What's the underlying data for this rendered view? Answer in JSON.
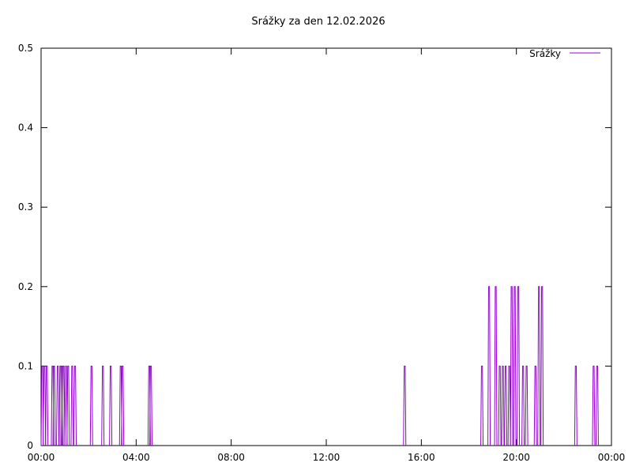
{
  "chart_data": {
    "type": "line",
    "title": "Srážky za den 12.02.2026",
    "xlabel": "",
    "ylabel": "",
    "legend_position": "top-right",
    "grid": false,
    "xlim": [
      0,
      24
    ],
    "ylim": [
      0,
      0.5
    ],
    "x_ticks": [
      "00:00",
      "04:00",
      "08:00",
      "12:00",
      "16:00",
      "20:00",
      "00:00"
    ],
    "y_ticks": [
      "0",
      "0.1",
      "0.2",
      "0.3",
      "0.4",
      "0.5"
    ],
    "series": [
      {
        "name": "Srážky",
        "color": "#9400d3",
        "x": [
          0.05,
          0.14,
          0.24,
          0.48,
          0.55,
          0.7,
          0.81,
          0.88,
          0.95,
          1.05,
          1.14,
          1.31,
          1.43,
          2.12,
          2.6,
          2.93,
          3.35,
          3.43,
          4.55,
          4.62,
          15.3,
          18.55,
          18.85,
          19.13,
          19.3,
          19.43,
          19.55,
          19.7,
          19.8,
          19.93,
          20.08,
          20.28,
          20.43,
          20.8,
          20.95,
          21.08,
          22.5,
          23.25,
          23.4
        ],
        "y": [
          0.1,
          0.1,
          0.1,
          0.1,
          0.1,
          0.1,
          0.1,
          0.1,
          0.1,
          0.1,
          0.1,
          0.1,
          0.1,
          0.1,
          0.1,
          0.1,
          0.1,
          0.1,
          0.1,
          0.1,
          0.1,
          0.1,
          0.2,
          0.2,
          0.1,
          0.1,
          0.1,
          0.1,
          0.2,
          0.2,
          0.2,
          0.1,
          0.1,
          0.1,
          0.2,
          0.2,
          0.1,
          0.1,
          0.1
        ]
      }
    ]
  }
}
